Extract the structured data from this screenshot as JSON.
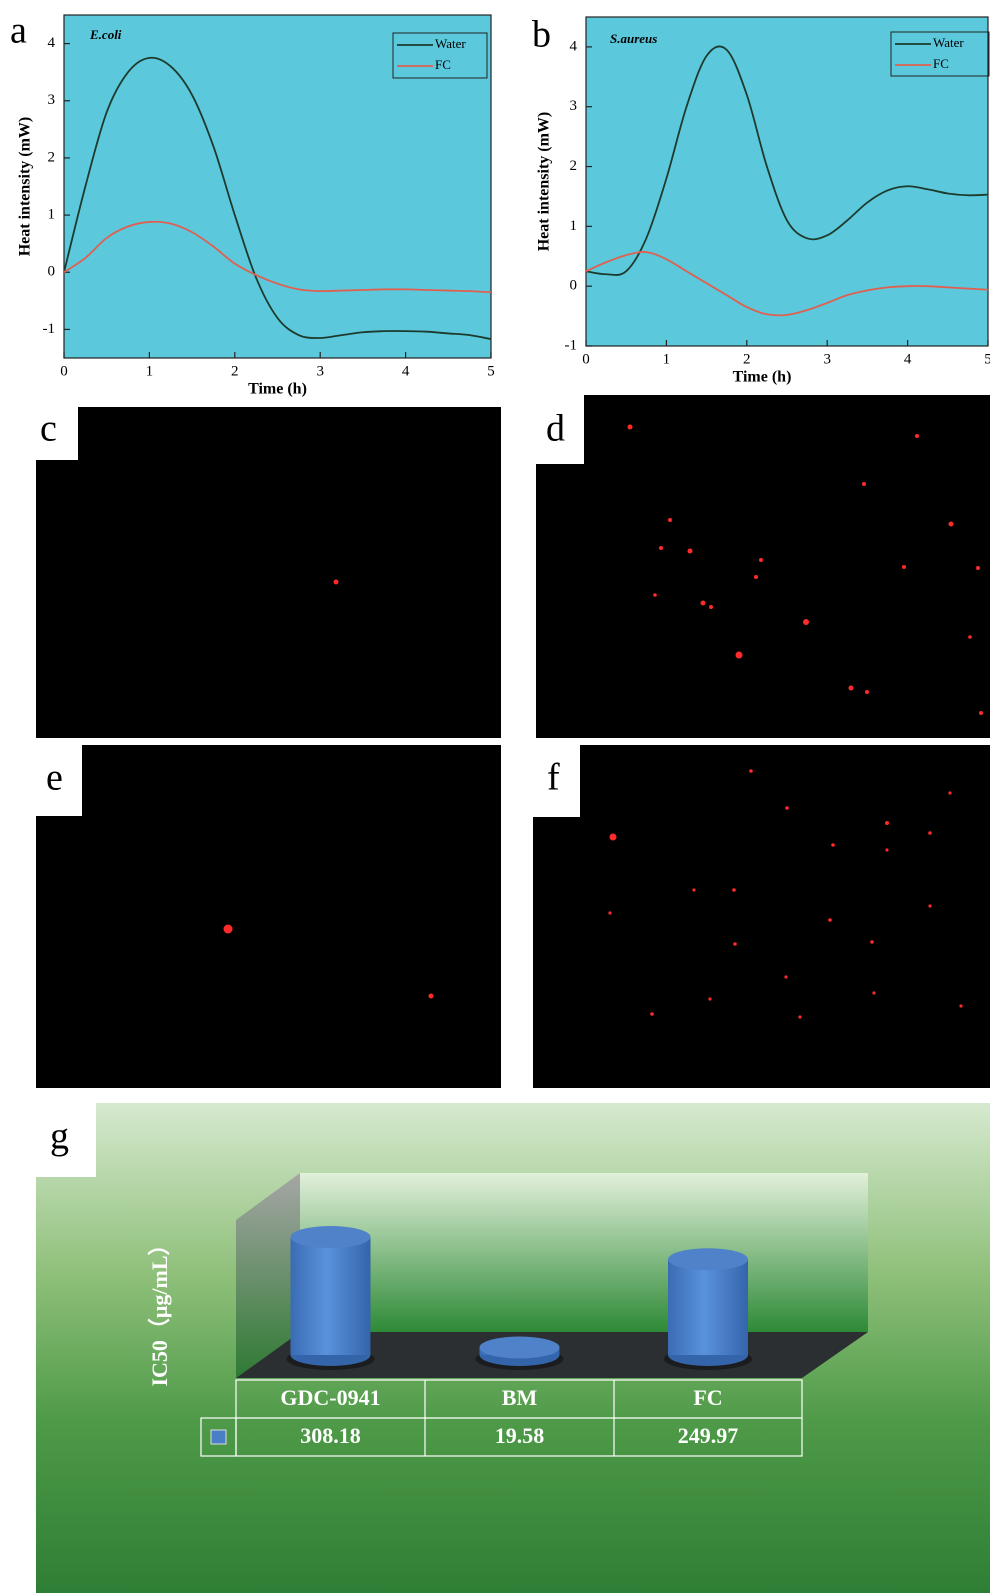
{
  "chart_data": [
    {
      "type": "line",
      "panel": "a",
      "title": "E.coli",
      "x_label": "Time (h)",
      "y_label": "Heat intensity (mW)",
      "x": [
        0,
        0.25,
        0.5,
        0.75,
        1,
        1.25,
        1.5,
        1.75,
        2,
        2.25,
        2.5,
        2.75,
        3,
        3.25,
        3.5,
        3.75,
        4,
        4.25,
        4.5,
        4.75,
        5
      ],
      "series": [
        {
          "name": "Water",
          "color": "#1d3b2c",
          "values": [
            0,
            1.5,
            2.8,
            3.5,
            3.75,
            3.6,
            3.1,
            2.2,
            1.0,
            -0.1,
            -0.8,
            -1.1,
            -1.15,
            -1.1,
            -1.05,
            -1.03,
            -1.03,
            -1.04,
            -1.07,
            -1.1,
            -1.17
          ]
        },
        {
          "name": "FC",
          "color": "#e0604f",
          "values": [
            0,
            0.25,
            0.6,
            0.8,
            0.88,
            0.85,
            0.7,
            0.45,
            0.15,
            -0.05,
            -0.2,
            -0.3,
            -0.33,
            -0.32,
            -0.31,
            -0.3,
            -0.3,
            -0.31,
            -0.32,
            -0.33,
            -0.35
          ]
        }
      ],
      "xlim": [
        0,
        5
      ],
      "xticks": [
        0,
        1,
        2,
        3,
        4,
        5
      ],
      "ylim": [
        -1.5,
        4.5
      ],
      "yticks": [
        -1,
        0,
        1,
        2,
        3,
        4
      ],
      "legend": "upper right"
    },
    {
      "type": "line",
      "panel": "b",
      "title": "S.aureus",
      "x_label": "Time (h)",
      "y_label": "Heat intensity (mW)",
      "x": [
        0,
        0.25,
        0.5,
        0.75,
        1,
        1.25,
        1.5,
        1.75,
        2,
        2.25,
        2.5,
        2.75,
        3,
        3.25,
        3.5,
        3.75,
        4,
        4.25,
        4.5,
        4.75,
        5
      ],
      "series": [
        {
          "name": "Water",
          "color": "#1d3b2c",
          "values": [
            0.25,
            0.2,
            0.25,
            0.8,
            1.8,
            3.0,
            3.85,
            3.95,
            3.2,
            2.0,
            1.1,
            0.8,
            0.85,
            1.1,
            1.4,
            1.6,
            1.67,
            1.62,
            1.55,
            1.52,
            1.53
          ]
        },
        {
          "name": "FC",
          "color": "#e0604f",
          "values": [
            0.25,
            0.4,
            0.52,
            0.57,
            0.45,
            0.25,
            0.05,
            -0.15,
            -0.35,
            -0.47,
            -0.48,
            -0.4,
            -0.28,
            -0.15,
            -0.07,
            -0.02,
            0,
            0,
            -0.02,
            -0.04,
            -0.06
          ]
        }
      ],
      "xlim": [
        0,
        5
      ],
      "xticks": [
        0,
        1,
        2,
        3,
        4,
        5
      ],
      "ylim": [
        -1,
        4.5
      ],
      "yticks": [
        -1,
        0,
        1,
        2,
        3,
        4
      ],
      "legend": "upper right"
    },
    {
      "type": "bar",
      "panel": "g",
      "y_label": "IC50（μg/mL）",
      "categories": [
        "GDC-0941",
        "BM",
        "FC"
      ],
      "values": [
        308.18,
        19.58,
        249.97
      ],
      "color": "#4a7fc8",
      "ylim": [
        0,
        350
      ]
    }
  ],
  "images": [
    {
      "label": "c"
    },
    {
      "label": "d"
    },
    {
      "label": "e"
    },
    {
      "label": "f"
    }
  ]
}
